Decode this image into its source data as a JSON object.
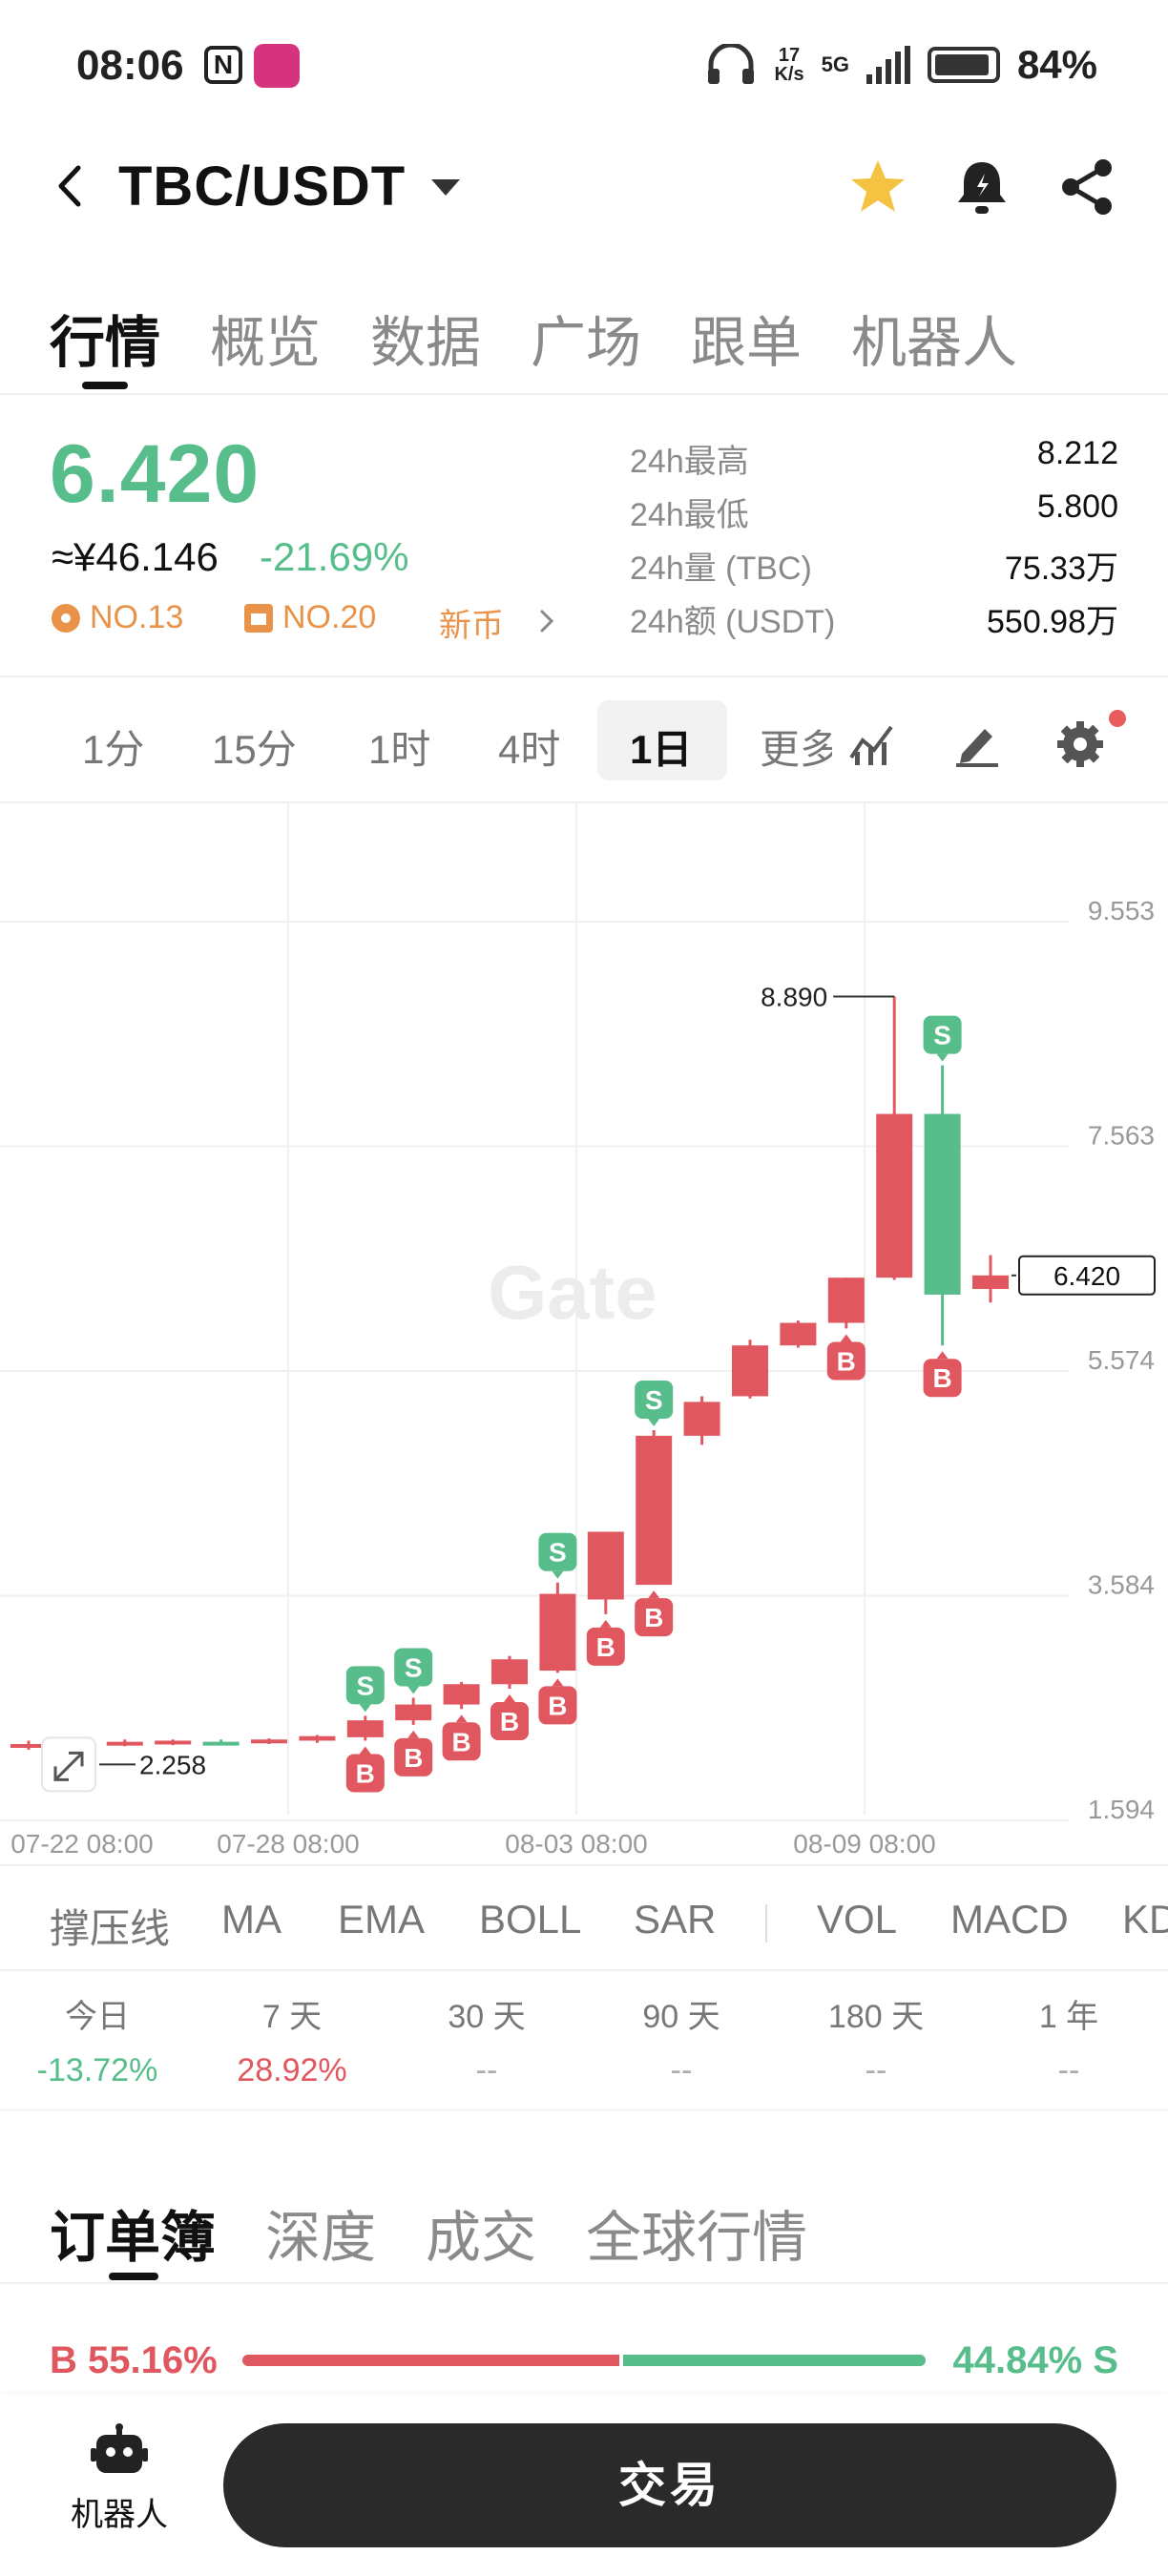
{
  "status_bar": {
    "time": "08:06",
    "network_speed_top": "17",
    "network_speed_bottom": "K/s",
    "network_type": "5G",
    "battery": "84%"
  },
  "header": {
    "pair": "TBC/USDT",
    "favorite_color": "#F5C242"
  },
  "main_tabs": [
    {
      "label": "行情",
      "active": true
    },
    {
      "label": "概览"
    },
    {
      "label": "数据"
    },
    {
      "label": "广场"
    },
    {
      "label": "跟单"
    },
    {
      "label": "机器人"
    }
  ],
  "price": {
    "last": "6.420",
    "cny": "≈¥46.146",
    "change": "-21.69%",
    "rank1": "NO.13",
    "rank2": "NO.20",
    "new_coin": "新币"
  },
  "stats": [
    {
      "label": "24h最高",
      "value": "8.212"
    },
    {
      "label": "24h最低",
      "value": "5.800"
    },
    {
      "label": "24h量 (TBC)",
      "value": "75.33万"
    },
    {
      "label": "24h额 (USDT)",
      "value": "550.98万"
    }
  ],
  "timeframes": [
    {
      "label": "1分"
    },
    {
      "label": "15分"
    },
    {
      "label": "1时"
    },
    {
      "label": "4时"
    },
    {
      "label": "1日",
      "active": true
    }
  ],
  "timeframe_more": "更多",
  "chart_data": {
    "type": "candlestick",
    "interval": "1日",
    "y_ticks": [
      "9.553",
      "7.563",
      "5.574",
      "3.584",
      "1.594"
    ],
    "x_ticks": [
      "07-22 08:00",
      "07-28 08:00",
      "08-03 08:00",
      "08-09 08:00"
    ],
    "ylim": [
      1.594,
      9.553
    ],
    "high_label": "8.890",
    "low_label": "2.258",
    "current_price_label": "6.420",
    "watermark": "Gate",
    "candles": [
      {
        "o": 2.26,
        "h": 2.3,
        "l": 2.22,
        "c": 2.27
      },
      {
        "o": 2.27,
        "h": 2.3,
        "l": 2.24,
        "c": 2.27
      },
      {
        "o": 2.27,
        "h": 2.31,
        "l": 2.25,
        "c": 2.29
      },
      {
        "o": 2.28,
        "h": 2.31,
        "l": 2.26,
        "c": 2.3
      },
      {
        "o": 2.29,
        "h": 2.31,
        "l": 2.27,
        "c": 2.28
      },
      {
        "o": 2.29,
        "h": 2.32,
        "l": 2.27,
        "c": 2.31
      },
      {
        "o": 2.3,
        "h": 2.35,
        "l": 2.28,
        "c": 2.34
      },
      {
        "o": 2.33,
        "h": 2.52,
        "l": 2.3,
        "c": 2.48
      },
      {
        "o": 2.48,
        "h": 2.68,
        "l": 2.44,
        "c": 2.62
      },
      {
        "o": 2.62,
        "h": 2.82,
        "l": 2.58,
        "c": 2.8
      },
      {
        "o": 2.8,
        "h": 3.05,
        "l": 2.76,
        "c": 3.02
      },
      {
        "o": 2.92,
        "h": 3.7,
        "l": 2.9,
        "c": 3.6
      },
      {
        "o": 3.55,
        "h": 4.15,
        "l": 3.42,
        "c": 4.15
      },
      {
        "o": 3.68,
        "h": 5.05,
        "l": 3.68,
        "c": 5.0
      },
      {
        "o": 5.0,
        "h": 5.35,
        "l": 4.92,
        "c": 5.3
      },
      {
        "o": 5.35,
        "h": 5.85,
        "l": 5.33,
        "c": 5.8
      },
      {
        "o": 5.8,
        "h": 6.02,
        "l": 5.78,
        "c": 6.0
      },
      {
        "o": 6.0,
        "h": 6.4,
        "l": 5.95,
        "c": 6.4
      },
      {
        "o": 6.4,
        "h": 8.89,
        "l": 6.38,
        "c": 7.85
      },
      {
        "o": 7.85,
        "h": 8.28,
        "l": 5.8,
        "c": 6.25
      },
      {
        "o": 6.3,
        "h": 6.6,
        "l": 6.18,
        "c": 6.42
      }
    ],
    "markers": [
      {
        "index": 7,
        "side": "S",
        "pos": "above"
      },
      {
        "index": 7,
        "side": "B",
        "pos": "below"
      },
      {
        "index": 8,
        "side": "S",
        "pos": "above"
      },
      {
        "index": 8,
        "side": "B",
        "pos": "below"
      },
      {
        "index": 9,
        "side": "B",
        "pos": "below"
      },
      {
        "index": 10,
        "side": "B",
        "pos": "below"
      },
      {
        "index": 11,
        "side": "S",
        "pos": "above"
      },
      {
        "index": 11,
        "side": "B",
        "pos": "below"
      },
      {
        "index": 12,
        "side": "B",
        "pos": "below"
      },
      {
        "index": 13,
        "side": "S",
        "pos": "above"
      },
      {
        "index": 13,
        "side": "B",
        "pos": "below"
      },
      {
        "index": 17,
        "side": "B",
        "pos": "below"
      },
      {
        "index": 19,
        "side": "S",
        "pos": "above"
      },
      {
        "index": 19,
        "side": "B",
        "pos": "below"
      }
    ],
    "up_color": "#E0575F",
    "down_color": "#57BD8B"
  },
  "indicators": [
    "撑压线",
    "MA",
    "EMA",
    "BOLL",
    "SAR",
    "VOL",
    "MACD",
    "KDJ"
  ],
  "performance": [
    {
      "label": "今日",
      "value": "-13.72%",
      "dir": "down"
    },
    {
      "label": "7 天",
      "value": "28.92%",
      "dir": "up"
    },
    {
      "label": "30 天",
      "value": "--"
    },
    {
      "label": "90 天",
      "value": "--"
    },
    {
      "label": "180 天",
      "value": "--"
    },
    {
      "label": "1 年",
      "value": "--"
    }
  ],
  "orderbook_tabs": [
    {
      "label": "订单簿",
      "active": true
    },
    {
      "label": "深度"
    },
    {
      "label": "成交"
    },
    {
      "label": "全球行情"
    }
  ],
  "ratio": {
    "buy": "B 55.16%",
    "sell": "44.84% S",
    "buy_pct": 55.16,
    "sell_pct": 44.84
  },
  "bottom": {
    "robot_label": "机器人",
    "trade_label": "交易"
  }
}
